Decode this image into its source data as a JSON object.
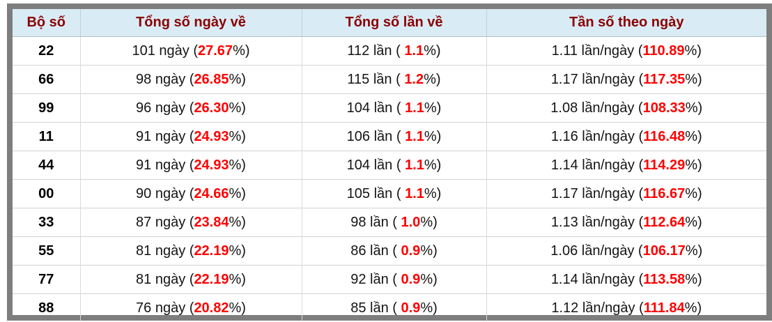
{
  "colors": {
    "header_bg": "#d9ecf6",
    "header_text": "#8b0000",
    "highlight_red": "#ff0000",
    "frame_gray": "#7e7e7e",
    "grid_gray": "#d2d2d2",
    "body_text": "#141414"
  },
  "chart_data": {
    "type": "table",
    "columns": [
      "Bộ số",
      "Tổng số ngày về",
      "Tổng số lần về",
      "Tần số theo ngày"
    ],
    "units": {
      "days": "ngày",
      "times": "lần",
      "freq": "lần/ngày"
    },
    "rows": [
      {
        "pair": "22",
        "days": "101",
        "days_pct": "27.67",
        "times": "112",
        "times_pct": "1.1",
        "freq": "1.11",
        "freq_pct": "110.89"
      },
      {
        "pair": "66",
        "days": "98",
        "days_pct": "26.85",
        "times": "115",
        "times_pct": "1.2",
        "freq": "1.17",
        "freq_pct": "117.35"
      },
      {
        "pair": "99",
        "days": "96",
        "days_pct": "26.30",
        "times": "104",
        "times_pct": "1.1",
        "freq": "1.08",
        "freq_pct": "108.33"
      },
      {
        "pair": "11",
        "days": "91",
        "days_pct": "24.93",
        "times": "106",
        "times_pct": "1.1",
        "freq": "1.16",
        "freq_pct": "116.48"
      },
      {
        "pair": "44",
        "days": "91",
        "days_pct": "24.93",
        "times": "104",
        "times_pct": "1.1",
        "freq": "1.14",
        "freq_pct": "114.29"
      },
      {
        "pair": "00",
        "days": "90",
        "days_pct": "24.66",
        "times": "105",
        "times_pct": "1.1",
        "freq": "1.17",
        "freq_pct": "116.67"
      },
      {
        "pair": "33",
        "days": "87",
        "days_pct": "23.84",
        "times": "98",
        "times_pct": "1.0",
        "freq": "1.13",
        "freq_pct": "112.64"
      },
      {
        "pair": "55",
        "days": "81",
        "days_pct": "22.19",
        "times": "86",
        "times_pct": "0.9",
        "freq": "1.06",
        "freq_pct": "106.17"
      },
      {
        "pair": "77",
        "days": "81",
        "days_pct": "22.19",
        "times": "92",
        "times_pct": "0.9",
        "freq": "1.14",
        "freq_pct": "113.58"
      },
      {
        "pair": "88",
        "days": "76",
        "days_pct": "20.82",
        "times": "85",
        "times_pct": "0.9",
        "freq": "1.12",
        "freq_pct": "111.84"
      }
    ]
  }
}
